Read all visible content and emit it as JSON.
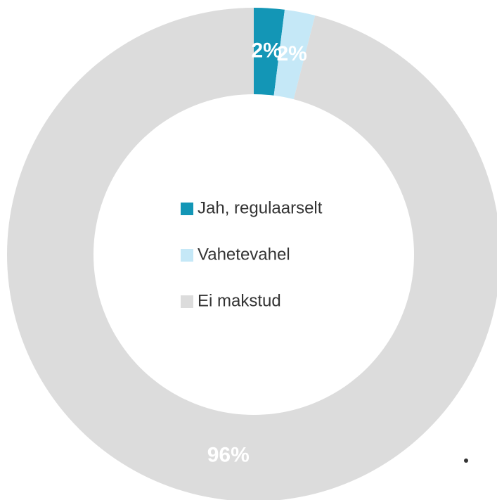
{
  "chart_data": {
    "type": "donut",
    "categories": [
      "Jah, regulaarselt",
      "Vahetevahel",
      "Ei makstud"
    ],
    "values": [
      2,
      2,
      96
    ],
    "value_labels": [
      "2%",
      "2%",
      "96%"
    ],
    "colors": [
      "#1396b6",
      "#c5e8f7",
      "#dcdcdc"
    ],
    "legend": "center"
  }
}
